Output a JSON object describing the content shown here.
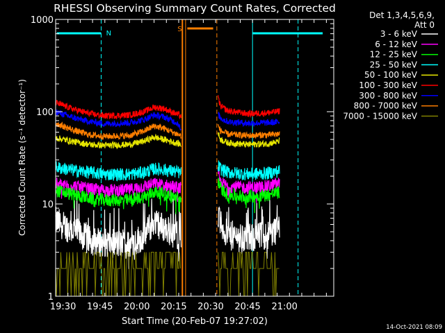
{
  "chart_data": {
    "type": "line",
    "title": "RHESSI Observing Summary Count Rates, Corrected",
    "xlabel": "Start Time (20-Feb-07 19:27:02)",
    "ylabel": "Corrected Count Rate (s⁻¹ detector⁻¹)",
    "y_scale": "log",
    "ylim": [
      1,
      1000
    ],
    "xlim_minutes": [
      0,
      113
    ],
    "x_ticks": [
      {
        "label": "19:30",
        "minute": 3
      },
      {
        "label": "19:45",
        "minute": 18
      },
      {
        "label": "20:00",
        "minute": 33
      },
      {
        "label": "20:15",
        "minute": 48
      },
      {
        "label": "20:30",
        "minute": 63
      },
      {
        "label": "20:45",
        "minute": 78
      },
      {
        "label": "21:00",
        "minute": 93
      }
    ],
    "y_ticks": [
      {
        "label": "1",
        "value": 1
      },
      {
        "label": "10",
        "value": 10
      },
      {
        "label": "100",
        "value": 100
      },
      {
        "label": "1000",
        "value": 1000
      }
    ],
    "legend_header": [
      "Det 1,3,4,5,6,9,",
      "Att 0"
    ],
    "legend_position": "right",
    "series": [
      {
        "name": "3 - 6 keV",
        "color": "#ffffff",
        "profile_a": [
          [
            0,
            6.5
          ],
          [
            8,
            5
          ],
          [
            14,
            4
          ],
          [
            20,
            3.8
          ],
          [
            30,
            3.6
          ],
          [
            36,
            4.5
          ],
          [
            40,
            6.5
          ],
          [
            44,
            5.5
          ],
          [
            50,
            4.5
          ],
          [
            51,
            4.2
          ]
        ],
        "profile_b": [
          [
            66,
            7.5
          ],
          [
            67,
            6
          ],
          [
            70,
            4.5
          ],
          [
            78,
            4.2
          ],
          [
            86,
            4.6
          ],
          [
            90,
            5.3
          ],
          [
            91,
            5.8
          ]
        ]
      },
      {
        "name": "6 - 12 keV",
        "color": "#ff00ff",
        "profile_a": [
          [
            0,
            16.5
          ],
          [
            8,
            15.5
          ],
          [
            14,
            14.5
          ],
          [
            20,
            14
          ],
          [
            30,
            14.2
          ],
          [
            36,
            15.5
          ],
          [
            40,
            16.5
          ],
          [
            44,
            16
          ],
          [
            50,
            15
          ],
          [
            51,
            14.8
          ]
        ],
        "profile_b": [
          [
            66,
            21
          ],
          [
            67,
            17
          ],
          [
            70,
            15.5
          ],
          [
            78,
            15
          ],
          [
            86,
            15.5
          ],
          [
            90,
            16.5
          ],
          [
            91,
            16.8
          ]
        ]
      },
      {
        "name": "12 - 25 keV",
        "color": "#00ff00",
        "profile_a": [
          [
            0,
            14
          ],
          [
            8,
            12.5
          ],
          [
            14,
            11.5
          ],
          [
            20,
            11
          ],
          [
            30,
            11
          ],
          [
            36,
            12
          ],
          [
            40,
            13.5
          ],
          [
            44,
            13
          ],
          [
            50,
            11.5
          ],
          [
            51,
            11
          ]
        ],
        "profile_b": [
          [
            66,
            18
          ],
          [
            67,
            15
          ],
          [
            70,
            12.5
          ],
          [
            78,
            12
          ],
          [
            86,
            12.5
          ],
          [
            90,
            13.2
          ],
          [
            91,
            13.5
          ]
        ]
      },
      {
        "name": "25 - 50 keV",
        "color": "#00ffff",
        "profile_a": [
          [
            0,
            25
          ],
          [
            8,
            23
          ],
          [
            14,
            22
          ],
          [
            20,
            21
          ],
          [
            30,
            21
          ],
          [
            36,
            22
          ],
          [
            40,
            24
          ],
          [
            44,
            23.5
          ],
          [
            50,
            22
          ],
          [
            51,
            21.5
          ]
        ],
        "profile_b": [
          [
            66,
            26
          ],
          [
            67,
            24
          ],
          [
            70,
            22
          ],
          [
            78,
            21
          ],
          [
            86,
            21.5
          ],
          [
            90,
            22.5
          ],
          [
            91,
            23
          ]
        ]
      },
      {
        "name": "50 - 100 keV",
        "color": "#e6e600",
        "profile_a": [
          [
            0,
            52
          ],
          [
            8,
            47
          ],
          [
            14,
            44
          ],
          [
            20,
            43
          ],
          [
            30,
            44
          ],
          [
            36,
            48
          ],
          [
            40,
            53
          ],
          [
            44,
            50
          ],
          [
            50,
            45
          ],
          [
            51,
            44
          ]
        ],
        "profile_b": [
          [
            66,
            58
          ],
          [
            67,
            50
          ],
          [
            70,
            46
          ],
          [
            78,
            44
          ],
          [
            86,
            45
          ],
          [
            90,
            47
          ],
          [
            91,
            48
          ]
        ]
      },
      {
        "name": "100 - 300 keV",
        "color": "#ff0000",
        "profile_a": [
          [
            0,
            125
          ],
          [
            8,
            105
          ],
          [
            14,
            95
          ],
          [
            20,
            90
          ],
          [
            30,
            92
          ],
          [
            36,
            100
          ],
          [
            40,
            112
          ],
          [
            44,
            108
          ],
          [
            50,
            92
          ],
          [
            51,
            90
          ]
        ],
        "profile_b": [
          [
            66,
            140
          ],
          [
            67,
            115
          ],
          [
            70,
            102
          ],
          [
            78,
            95
          ],
          [
            86,
            97
          ],
          [
            90,
            100
          ],
          [
            91,
            102
          ]
        ]
      },
      {
        "name": "300 - 800 keV",
        "color": "#0000ff",
        "profile_a": [
          [
            0,
            100
          ],
          [
            8,
            85
          ],
          [
            14,
            78
          ],
          [
            20,
            74
          ],
          [
            30,
            76
          ],
          [
            36,
            82
          ],
          [
            40,
            92
          ],
          [
            44,
            88
          ],
          [
            50,
            74
          ],
          [
            51,
            60
          ]
        ],
        "profile_b": [
          [
            66,
            95
          ],
          [
            67,
            85
          ],
          [
            70,
            78
          ],
          [
            78,
            75
          ],
          [
            86,
            76
          ],
          [
            90,
            77
          ],
          [
            91,
            78
          ]
        ]
      },
      {
        "name": "800 - 7000 keV",
        "color": "#ff7f00",
        "profile_a": [
          [
            0,
            75
          ],
          [
            8,
            62
          ],
          [
            14,
            56
          ],
          [
            20,
            54
          ],
          [
            30,
            55
          ],
          [
            36,
            62
          ],
          [
            40,
            70
          ],
          [
            44,
            66
          ],
          [
            50,
            56
          ],
          [
            51,
            55
          ]
        ],
        "profile_b": [
          [
            66,
            70
          ],
          [
            67,
            62
          ],
          [
            70,
            57
          ],
          [
            78,
            55
          ],
          [
            86,
            56
          ],
          [
            90,
            57
          ],
          [
            91,
            58
          ]
        ]
      },
      {
        "name": "7000 - 15000 keV",
        "color": "#808000"
      }
    ],
    "annotations": [
      {
        "label": "N",
        "color": "#00ffff"
      },
      {
        "label": "S",
        "color": "#ff7f00"
      }
    ]
  },
  "footer": {
    "date": "14-Oct-2021 08:09"
  }
}
